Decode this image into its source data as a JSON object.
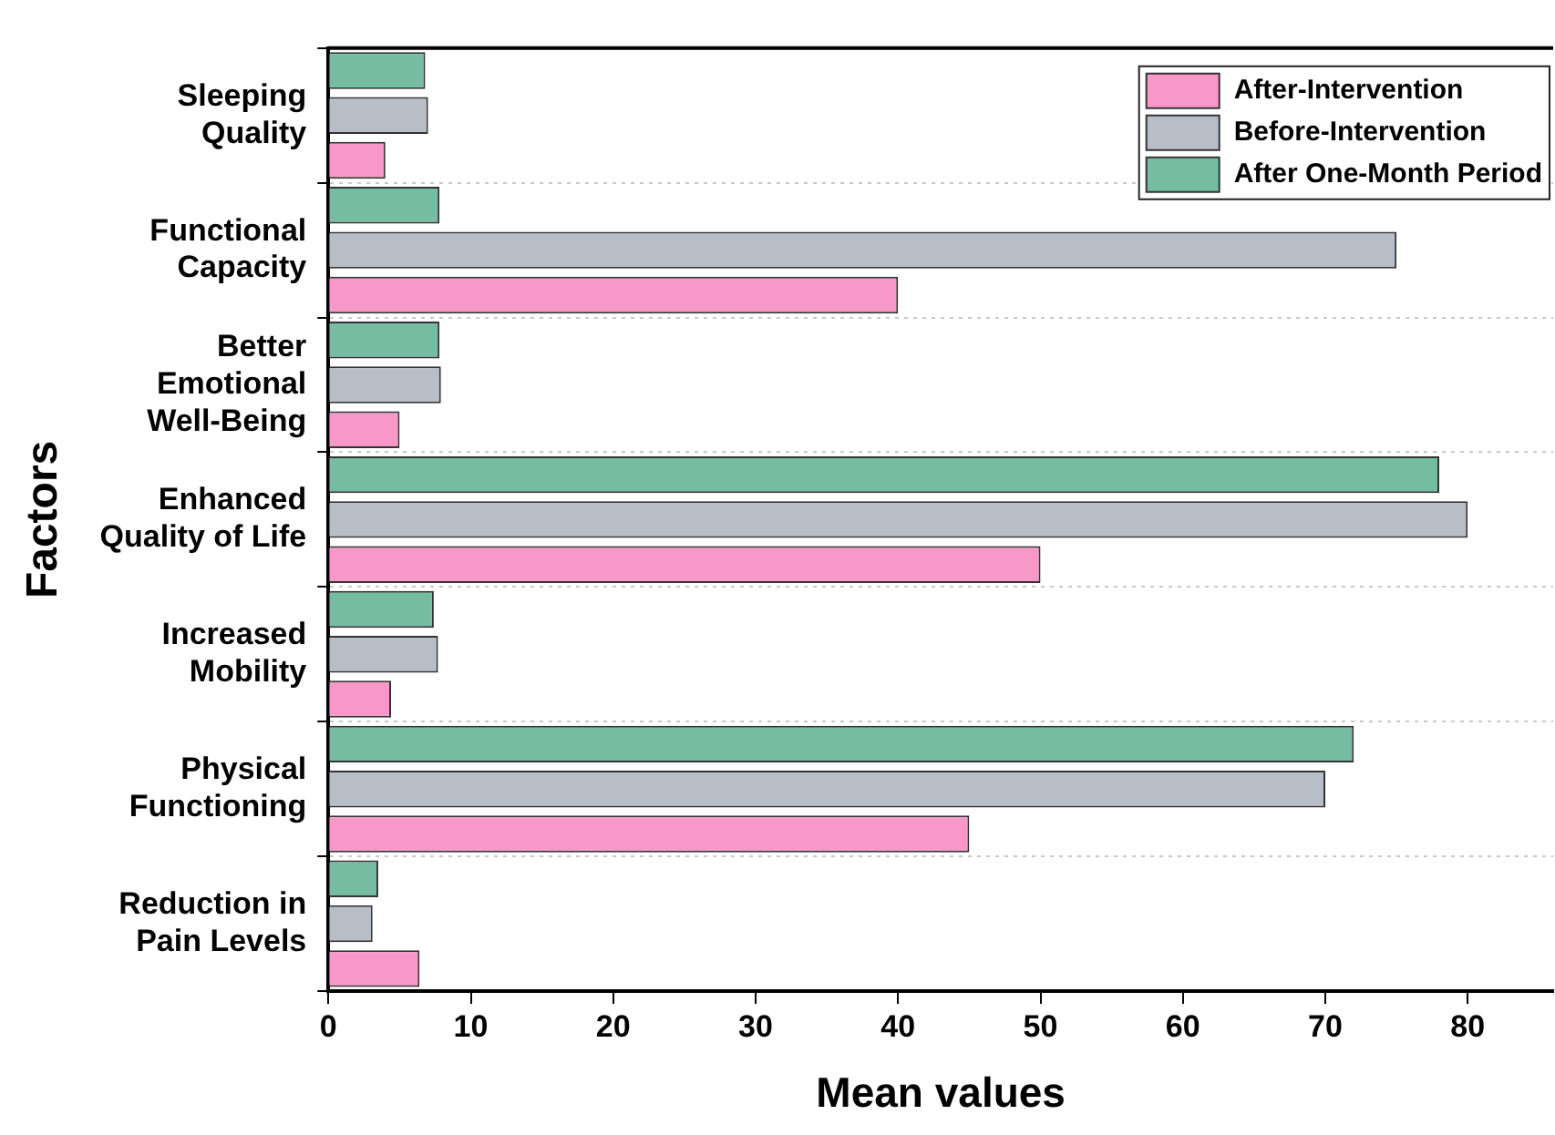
{
  "chart_data": {
    "type": "bar",
    "orientation": "horizontal",
    "xlabel": "Mean values",
    "ylabel": "Factors",
    "categories": [
      "Sleeping Quality",
      "Functional Capacity",
      "Better Emotional Well-Being",
      "Enhanced Quality of Life",
      "Increased Mobility",
      "Physical Functioning",
      "Reduction in Pain Levels"
    ],
    "series": [
      {
        "name": "After-Intervention",
        "color": "#f898c8",
        "values": [
          4.0,
          40,
          5.0,
          50,
          4.4,
          45,
          6.4
        ]
      },
      {
        "name": "Before-Intervention",
        "color": "#b8bec8",
        "values": [
          7.0,
          75,
          7.9,
          80,
          7.7,
          70,
          3.1
        ]
      },
      {
        "name": "After One-Month Period",
        "color": "#74bca2",
        "values": [
          6.8,
          7.8,
          7.8,
          78,
          7.4,
          72,
          3.5
        ]
      }
    ],
    "xlim": [
      0,
      86
    ],
    "xticks": [
      0,
      10,
      20,
      30,
      40,
      50,
      60,
      70,
      80
    ],
    "grid": "y",
    "legend": "top right"
  }
}
